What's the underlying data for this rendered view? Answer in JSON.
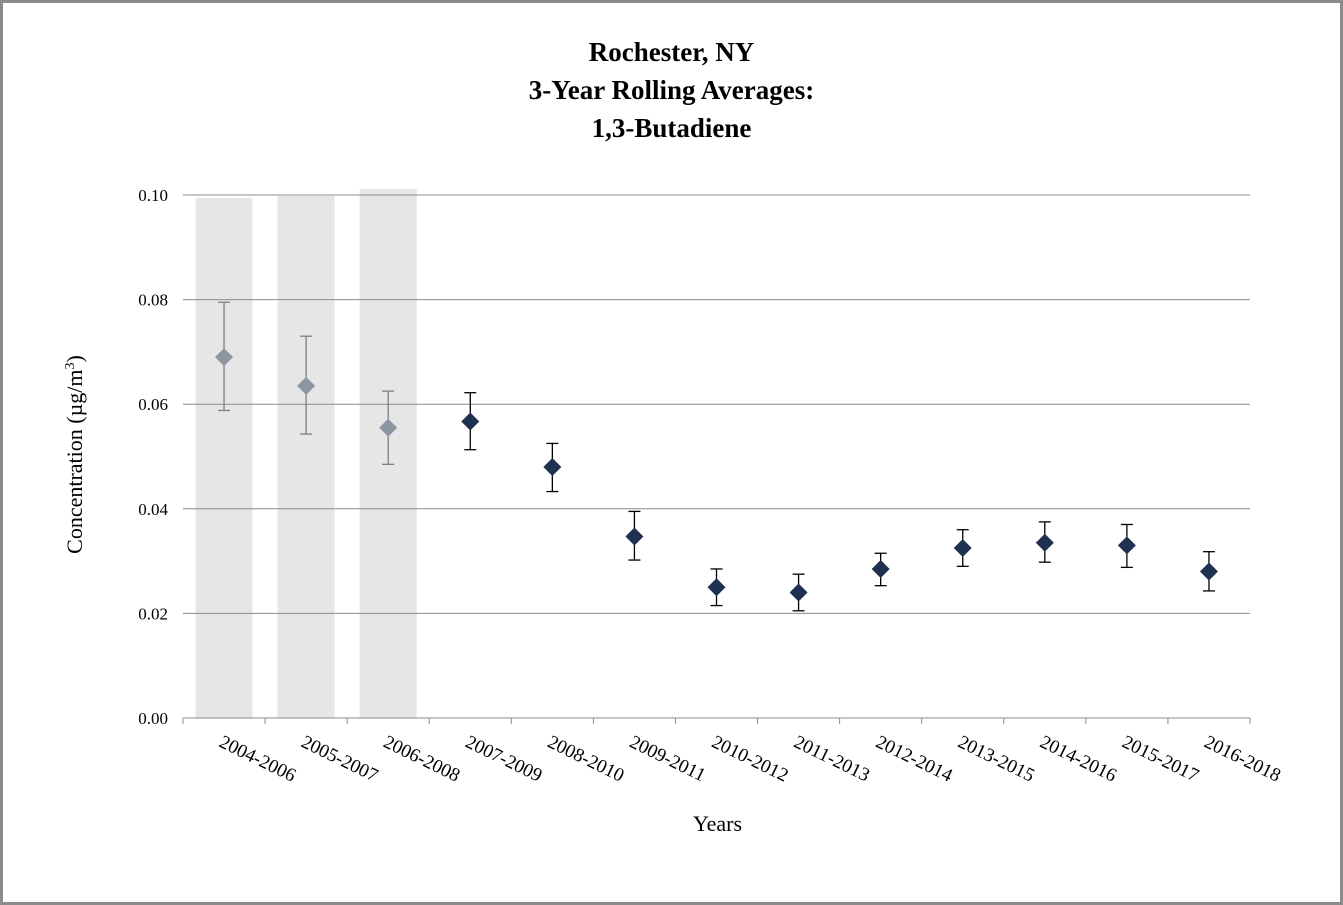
{
  "chart_data": {
    "type": "scatter",
    "title_lines": [
      "Rochester, NY",
      "3-Year Rolling  Averages:",
      "1,3-Butadiene"
    ],
    "xlabel": "Years",
    "ylabel": "Concentration (µg/m",
    "ylabel_sup": "3",
    "ylabel_close": ")",
    "ylim": [
      0,
      0.1
    ],
    "yticks": [
      "0.00",
      "0.02",
      "0.04",
      "0.06",
      "0.08",
      "0.10"
    ],
    "grid": true,
    "categories": [
      "2004-2006",
      "2005-2007",
      "2006-2008",
      "2007-2009",
      "2008-2010",
      "2009-2011",
      "2010-2012",
      "2011-2013",
      "2012-2014",
      "2013-2015",
      "2014-2016",
      "2015-2017",
      "2016-2018"
    ],
    "values": [
      0.069,
      0.0635,
      0.0555,
      0.0567,
      0.048,
      0.0347,
      0.025,
      0.024,
      0.0285,
      0.0325,
      0.0335,
      0.033,
      0.028
    ],
    "error_low": [
      0.0588,
      0.0543,
      0.0485,
      0.0513,
      0.0433,
      0.0302,
      0.0215,
      0.0205,
      0.0253,
      0.029,
      0.0298,
      0.0288,
      0.0243
    ],
    "error_high": [
      0.0795,
      0.073,
      0.0625,
      0.0622,
      0.0525,
      0.0395,
      0.0285,
      0.0275,
      0.0315,
      0.036,
      0.0375,
      0.037,
      0.0318
    ],
    "shaded_categories": [
      "2004-2006",
      "2005-2007",
      "2006-2008"
    ],
    "colors": {
      "point": "#1f3050",
      "shaded_point": "#8c96a3",
      "shade": "#e6e6e6",
      "grid": "#8c8c8c",
      "errorbar": "#000000",
      "shaded_errorbar": "#7f7f7f"
    }
  }
}
